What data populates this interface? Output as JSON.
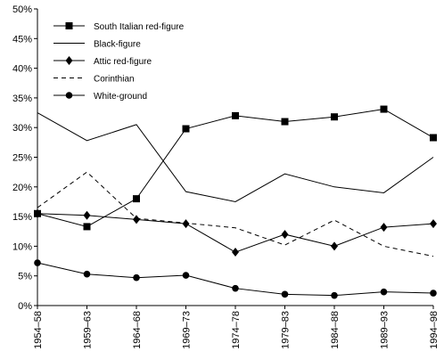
{
  "chart_data": {
    "type": "line",
    "title": "",
    "xlabel": "",
    "ylabel": "",
    "categories": [
      "1954–58",
      "1959–63",
      "1964–68",
      "1969–73",
      "1974–78",
      "1979–83",
      "1984–88",
      "1989–93",
      "1994–98"
    ],
    "ylim": [
      0,
      50
    ],
    "yticks": [
      "0%",
      "5%",
      "10%",
      "15%",
      "20%",
      "25%",
      "30%",
      "35%",
      "40%",
      "45%",
      "50%"
    ],
    "grid": false,
    "legend_position": "top-left",
    "series": [
      {
        "name": "South Italian red-figure",
        "marker": "square",
        "dash": "solid",
        "values": [
          15.5,
          13.3,
          18.0,
          29.8,
          32.0,
          31.0,
          31.8,
          33.1,
          28.3
        ]
      },
      {
        "name": "Black-figure",
        "marker": "none",
        "dash": "solid",
        "values": [
          32.5,
          27.8,
          30.5,
          19.2,
          17.5,
          22.2,
          20.0,
          19.0,
          25.0
        ]
      },
      {
        "name": "Attic red-figure",
        "marker": "diamond",
        "dash": "solid",
        "values": [
          15.5,
          15.2,
          14.5,
          13.8,
          9.0,
          12.0,
          10.0,
          13.2,
          13.8
        ]
      },
      {
        "name": "Corinthian",
        "marker": "none",
        "dash": "dashed",
        "values": [
          16.5,
          22.5,
          14.7,
          13.9,
          13.1,
          10.2,
          14.4,
          10.0,
          8.3
        ]
      },
      {
        "name": "White-ground",
        "marker": "circle",
        "dash": "solid",
        "values": [
          7.2,
          5.3,
          4.7,
          5.1,
          2.9,
          1.9,
          1.7,
          2.3,
          2.1
        ]
      }
    ]
  }
}
